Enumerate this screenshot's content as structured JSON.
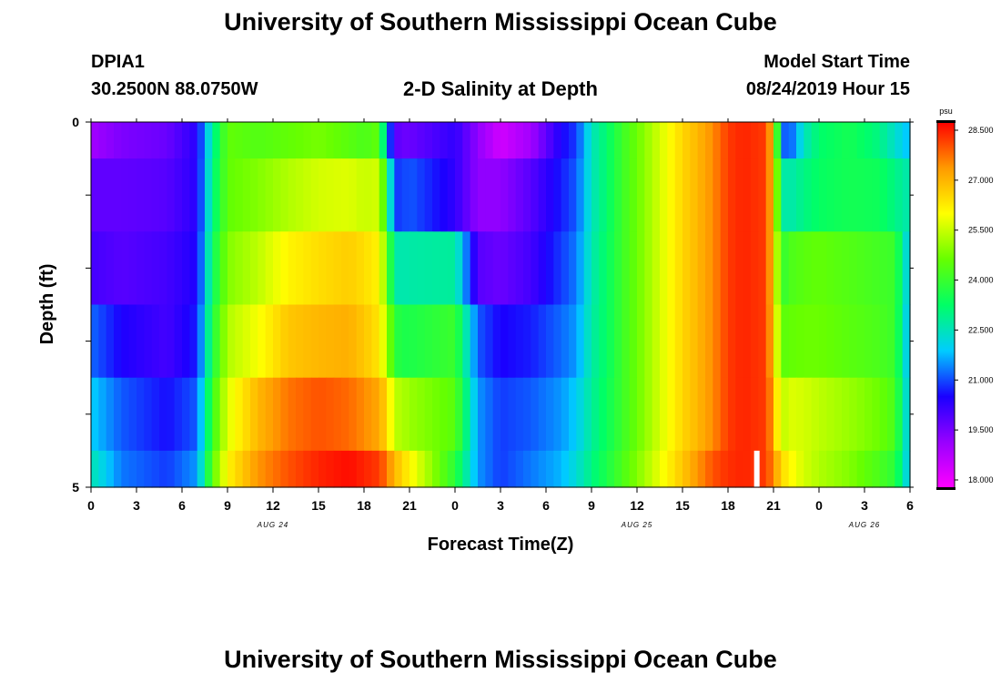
{
  "header": {
    "title": "University of Southern Mississippi Ocean Cube",
    "station": "DPIA1",
    "coords": "30.2500N 88.0750W",
    "subtitle": "2-D Salinity at Depth",
    "model_label": "Model Start Time",
    "model_time": "08/24/2019 Hour 15"
  },
  "footer": {
    "title": "University of Southern Mississippi Ocean Cube"
  },
  "colors": {
    "scale": [
      "#ff00ff",
      "#9900ff",
      "#1a00ff",
      "#00ccff",
      "#00ff66",
      "#66ff00",
      "#ffff00",
      "#ff9900",
      "#ff0000"
    ],
    "marker": "#ffffff"
  },
  "chart_data": {
    "type": "heatmap",
    "title": "2-D Salinity at Depth",
    "xlabel": "Forecast Time(Z)",
    "ylabel": "Depth (ft)",
    "x_tick_labels": [
      "0",
      "3",
      "6",
      "9",
      "12",
      "15",
      "18",
      "21",
      "0",
      "3",
      "6",
      "9",
      "12",
      "15",
      "18",
      "21",
      "0",
      "3",
      "6"
    ],
    "date_labels": [
      {
        "label": "AUG 24",
        "hour": 12
      },
      {
        "label": "AUG 25",
        "hour": 36
      },
      {
        "label": "AUG 26",
        "hour": 51
      }
    ],
    "x_range_hours": [
      0,
      54
    ],
    "y_tick_labels": [
      "0",
      "5"
    ],
    "y_range_ft": [
      0,
      5
    ],
    "depth_levels_ft": [
      0,
      0.5,
      1.5,
      2.5,
      3.5,
      4.5,
      5
    ],
    "colorbar": {
      "unit": "psu",
      "min": 18.0,
      "max": 28.5,
      "labels": [
        "28.500",
        "27.000",
        "25.500",
        "24.000",
        "22.500",
        "21.000",
        "19.500",
        "18.000"
      ]
    },
    "marker": {
      "hour": 43.9,
      "depth_start_ft": 4.5,
      "depth_end_ft": 5
    },
    "keyframes_hours": [
      0,
      2,
      5,
      7,
      8,
      9,
      11,
      13,
      15,
      17,
      18,
      19,
      19.5,
      20,
      20.5,
      21,
      24,
      25.5,
      27,
      29,
      31,
      32,
      33,
      34,
      35,
      36,
      37,
      38,
      39,
      40,
      41,
      42,
      43,
      44.5,
      45,
      45.5,
      46,
      47,
      48,
      50,
      52,
      53,
      54
    ],
    "series": [
      {
        "name": "0-0.5 ft",
        "values": [
          19.2,
          19.6,
          19.8,
          20.5,
          22.8,
          24.5,
          24.3,
          24.5,
          24.7,
          24.4,
          24.2,
          24.5,
          21.8,
          20.0,
          19.8,
          19.8,
          20.4,
          19.4,
          18.6,
          19.2,
          20.6,
          21.0,
          22.5,
          23.2,
          24.0,
          24.6,
          25.2,
          25.8,
          26.4,
          26.8,
          27.3,
          28.0,
          28.2,
          28.0,
          26.5,
          21.5,
          21.0,
          22.5,
          23.2,
          23.5,
          23.0,
          22.4,
          21.8
        ]
      },
      {
        "name": "0.5-1.5 ft",
        "values": [
          19.9,
          19.9,
          20.0,
          20.5,
          23.0,
          24.5,
          24.8,
          25.2,
          25.5,
          25.6,
          25.4,
          25.5,
          23.6,
          21.0,
          21.0,
          21.2,
          20.4,
          19.4,
          19.4,
          20.0,
          20.8,
          21.2,
          22.5,
          23.2,
          24.0,
          24.6,
          25.2,
          25.8,
          26.4,
          26.8,
          27.3,
          28.0,
          28.2,
          28.0,
          26.5,
          22.8,
          22.6,
          23.0,
          23.3,
          23.5,
          23.4,
          23.0,
          22.6
        ]
      },
      {
        "name": "1.5-2.5 ft",
        "values": [
          20.2,
          20.0,
          20.2,
          20.6,
          23.3,
          24.8,
          25.3,
          26.0,
          26.3,
          26.5,
          26.3,
          26.0,
          24.6,
          22.7,
          22.6,
          22.7,
          22.8,
          20.0,
          19.8,
          20.2,
          21.0,
          21.4,
          22.6,
          23.3,
          24.0,
          24.6,
          25.2,
          25.8,
          26.4,
          26.8,
          27.3,
          28.0,
          28.2,
          28.0,
          26.5,
          23.8,
          24.2,
          24.4,
          24.5,
          24.3,
          24.1,
          24.0,
          21.8
        ]
      },
      {
        "name": "2.5-3.5 ft",
        "values": [
          21.3,
          20.6,
          20.2,
          20.8,
          23.6,
          25.2,
          25.8,
          26.6,
          26.8,
          26.9,
          26.6,
          26.2,
          25.2,
          23.8,
          23.6,
          23.6,
          24.0,
          21.2,
          20.6,
          20.8,
          21.3,
          21.6,
          22.7,
          23.3,
          24.0,
          24.6,
          25.2,
          25.8,
          26.4,
          26.8,
          27.3,
          28.0,
          28.2,
          28.0,
          26.6,
          24.4,
          24.5,
          24.6,
          24.6,
          24.4,
          24.2,
          24.0,
          21.6
        ]
      },
      {
        "name": "3.5-4.5 ft",
        "values": [
          22.0,
          21.2,
          20.7,
          21.2,
          24.0,
          25.6,
          26.8,
          27.5,
          27.8,
          27.6,
          27.3,
          27.0,
          26.4,
          25.3,
          25.2,
          25.0,
          24.4,
          21.6,
          21.0,
          21.2,
          21.6,
          22.0,
          22.8,
          23.4,
          24.0,
          24.6,
          25.2,
          25.8,
          26.4,
          26.8,
          27.3,
          28.0,
          28.2,
          28.0,
          27.0,
          25.2,
          25.6,
          25.5,
          25.3,
          25.0,
          24.6,
          24.2,
          21.8
        ]
      },
      {
        "name": "4.5-5 ft",
        "values": [
          22.6,
          21.4,
          21.0,
          21.6,
          24.4,
          26.0,
          27.2,
          27.8,
          28.2,
          28.4,
          28.2,
          28.0,
          27.5,
          26.8,
          26.4,
          26.0,
          23.8,
          21.6,
          21.0,
          21.4,
          21.8,
          22.3,
          23.0,
          23.6,
          24.2,
          24.8,
          25.4,
          26.0,
          26.6,
          27.2,
          27.8,
          28.1,
          28.2,
          28.0,
          27.3,
          26.4,
          26.0,
          25.5,
          25.2,
          24.8,
          24.2,
          23.8,
          21.8
        ]
      }
    ]
  }
}
